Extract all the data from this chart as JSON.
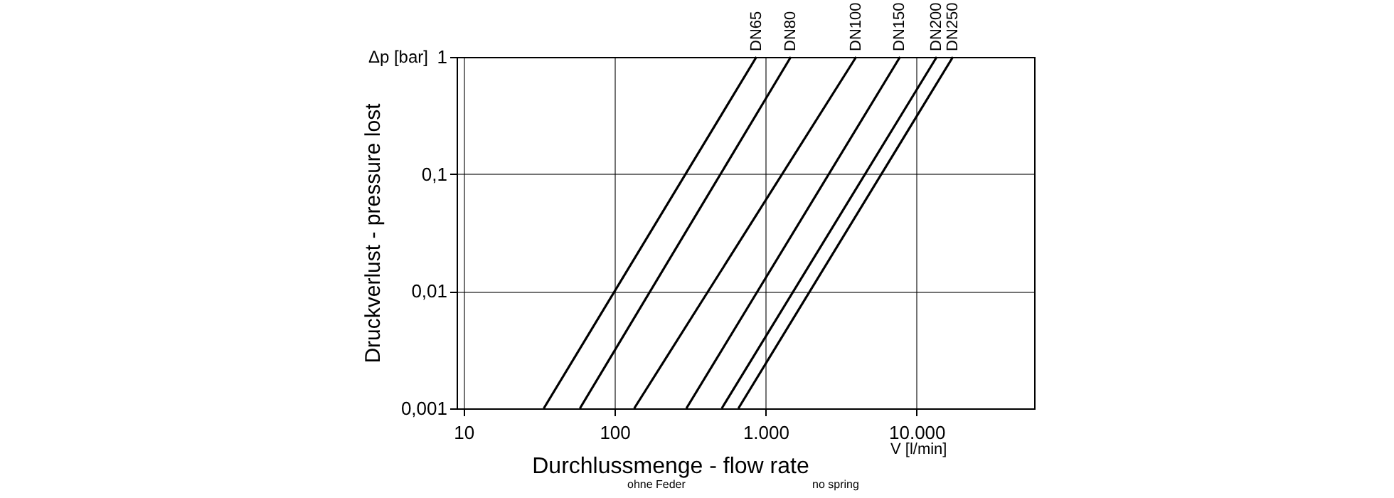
{
  "chart_data": {
    "type": "line",
    "xlabel": "Durchlussmenge - flow rate",
    "ylabel": "Druckverlust - pressure lost",
    "annotations": [
      "Δp [bar]",
      "V [l/min]",
      "ohne Feder",
      "no spring"
    ],
    "log": "xy",
    "grid": true,
    "legend": false,
    "line_style": "solid",
    "xlim": [
      9,
      60000
    ],
    "ylim": [
      0.001,
      1
    ],
    "xticks": [
      10,
      100,
      {
        "value": 1000,
        "label": "1.000"
      },
      {
        "value": 10000,
        "label": "10.000"
      }
    ],
    "yticks": [
      {
        "value": 0.001,
        "label": "0,001"
      },
      {
        "value": 0.01,
        "label": "0,01"
      },
      {
        "value": 0.1,
        "label": "0,1"
      },
      1
    ],
    "series": [
      {
        "name": "DN65",
        "color": "#000000",
        "x": [
          34,
          870
        ],
        "values": [
          0.001,
          1
        ]
      },
      {
        "name": "DN80",
        "color": "#000000",
        "x": [
          59,
          1470
        ],
        "values": [
          0.001,
          1
        ]
      },
      {
        "name": "DN100",
        "color": "#000000",
        "x": [
          135,
          3980
        ],
        "values": [
          0.001,
          1
        ]
      },
      {
        "name": "DN150",
        "color": "#000000",
        "x": [
          299,
          7770
        ],
        "values": [
          0.001,
          1
        ]
      },
      {
        "name": "DN200",
        "color": "#000000",
        "x": [
          513,
          13600
        ],
        "values": [
          0.001,
          1
        ]
      },
      {
        "name": "DN250",
        "color": "#000000",
        "x": [
          661,
          17400
        ],
        "values": [
          0.001,
          1
        ]
      }
    ]
  }
}
